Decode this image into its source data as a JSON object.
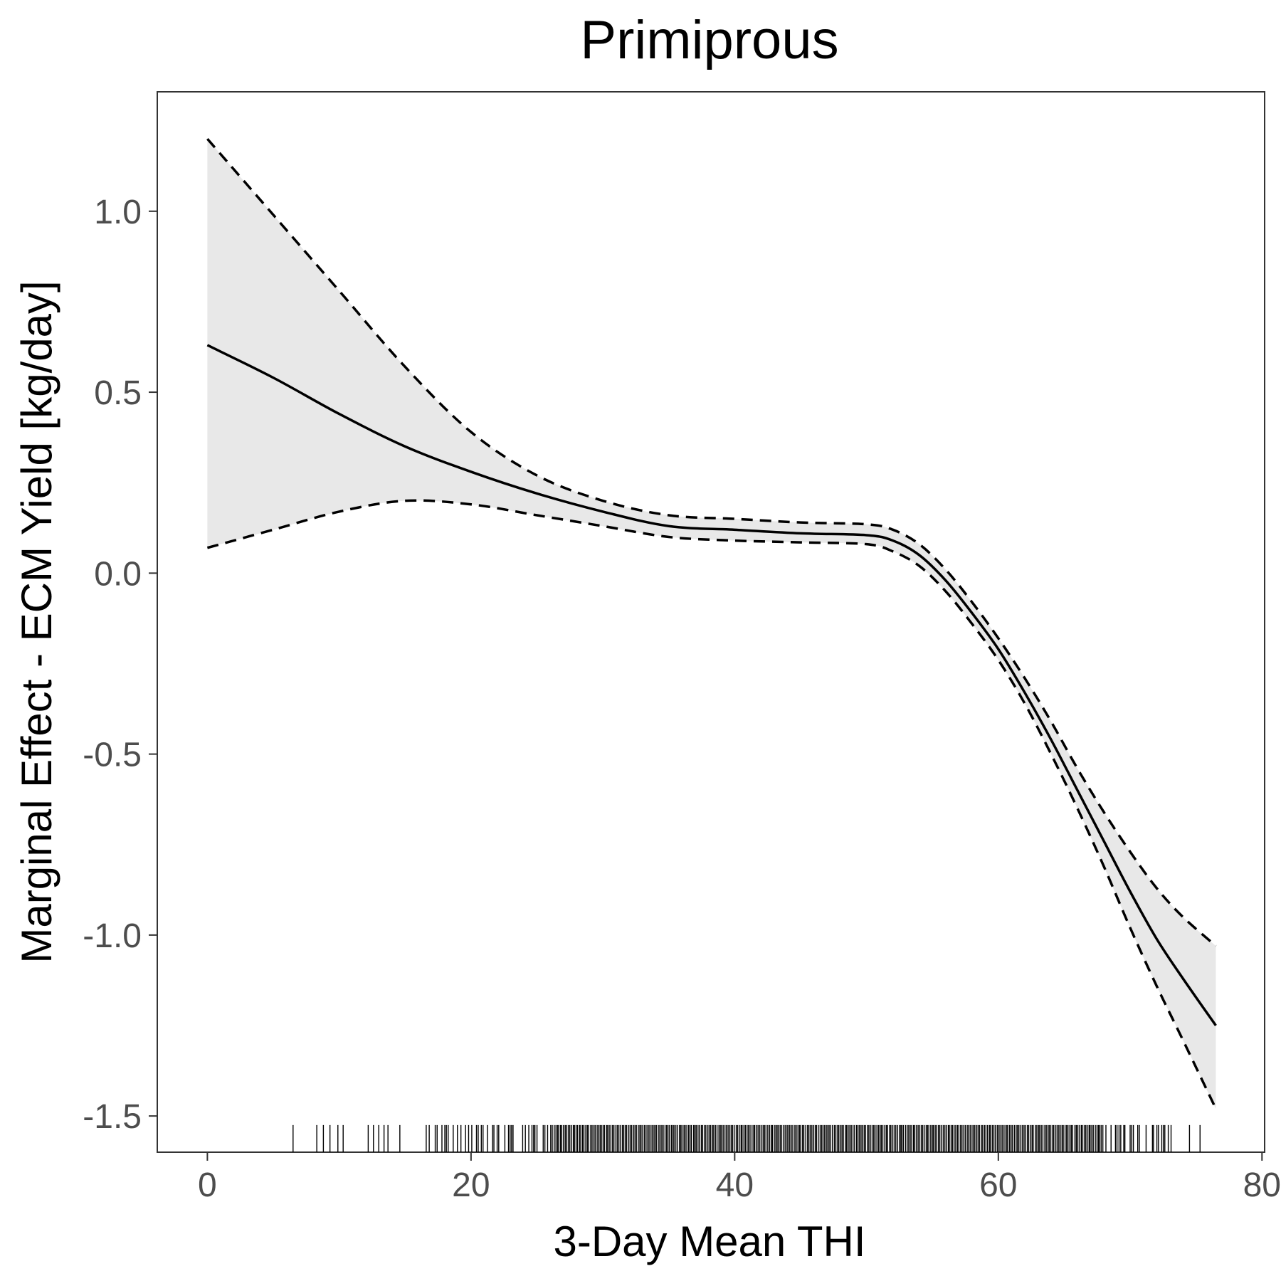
{
  "chart_data": {
    "type": "line",
    "title": "Primiprous",
    "xlabel": "3-Day Mean THI",
    "ylabel": "Marginal Effect - ECM Yield [kg/day]",
    "xlim": [
      -3.8,
      80.2
    ],
    "ylim": [
      -1.6,
      1.33
    ],
    "x_ticks": [
      0,
      20,
      40,
      60,
      80
    ],
    "x_tick_labels": [
      "0",
      "20",
      "40",
      "60",
      "80"
    ],
    "y_ticks": [
      1.0,
      0.5,
      0.0,
      -0.5,
      -1.0,
      -1.5
    ],
    "y_tick_labels": [
      "1.0",
      "0.5",
      "0.0",
      "-0.5",
      "-1.0",
      "-1.5"
    ],
    "grid": false,
    "legend": "none",
    "colors": {
      "line": "#000000",
      "band": "#e8e8e8",
      "text": "#000000",
      "ticks": "#4d4d4d"
    },
    "series": [
      {
        "role": "fit",
        "style": "solid",
        "x": [
          0,
          5,
          10,
          15,
          20,
          25,
          30,
          35,
          40,
          45,
          50,
          52,
          54,
          56,
          58,
          60,
          62,
          64,
          66,
          68,
          70,
          72,
          74,
          76.5
        ],
        "y": [
          0.63,
          0.54,
          0.44,
          0.35,
          0.28,
          0.22,
          0.17,
          0.13,
          0.12,
          0.11,
          0.105,
          0.09,
          0.05,
          -0.02,
          -0.11,
          -0.21,
          -0.33,
          -0.46,
          -0.6,
          -0.74,
          -0.88,
          -1.01,
          -1.12,
          -1.25
        ]
      },
      {
        "role": "upper",
        "style": "dashed",
        "x": [
          0,
          5,
          10,
          15,
          20,
          25,
          30,
          35,
          40,
          45,
          50,
          52,
          54,
          56,
          58,
          60,
          62,
          64,
          66,
          68,
          70,
          72,
          74,
          76.5
        ],
        "y": [
          1.2,
          0.99,
          0.78,
          0.57,
          0.39,
          0.27,
          0.2,
          0.16,
          0.15,
          0.14,
          0.135,
          0.12,
          0.08,
          0.01,
          -0.08,
          -0.18,
          -0.29,
          -0.41,
          -0.54,
          -0.66,
          -0.77,
          -0.87,
          -0.95,
          -1.03
        ]
      },
      {
        "role": "lower",
        "style": "dashed",
        "x": [
          0,
          5,
          10,
          15,
          20,
          25,
          30,
          35,
          40,
          45,
          50,
          52,
          54,
          56,
          58,
          60,
          62,
          64,
          66,
          68,
          70,
          72,
          74,
          76.5
        ],
        "y": [
          0.07,
          0.12,
          0.17,
          0.2,
          0.19,
          0.16,
          0.13,
          0.1,
          0.09,
          0.085,
          0.08,
          0.06,
          0.02,
          -0.05,
          -0.14,
          -0.24,
          -0.36,
          -0.5,
          -0.65,
          -0.81,
          -0.98,
          -1.14,
          -1.29,
          -1.48
        ]
      }
    ],
    "rug": {
      "x_min": 16.8,
      "x_max": 73.8,
      "sparse": [
        6.5,
        8.3,
        8.8,
        9.3,
        9.9,
        10.3,
        12.2,
        12.6,
        13.0,
        13.4,
        13.7,
        14.6,
        16.6,
        74.5,
        75.3
      ]
    }
  }
}
